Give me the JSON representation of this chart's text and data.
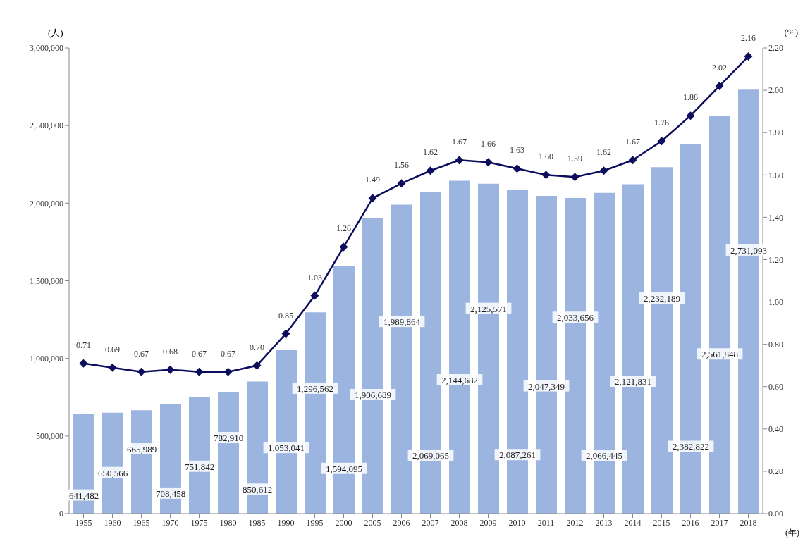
{
  "chart_data": {
    "type": "bar",
    "ylabel": "(人)",
    "y2label": "(%)",
    "xlabel": "(年)",
    "categories": [
      "1955",
      "1960",
      "1965",
      "1970",
      "1975",
      "1980",
      "1985",
      "1990",
      "1995",
      "2000",
      "2005",
      "2006",
      "2007",
      "2008",
      "2009",
      "2010",
      "2011",
      "2012",
      "2013",
      "2014",
      "2015",
      "2016",
      "2017",
      "2018"
    ],
    "series": [
      {
        "color": "#9bb4e0",
        "values": [
          641482,
          650566,
          665989,
          708458,
          751842,
          782910,
          850612,
          1053041,
          1296562,
          1594095,
          1906689,
          1989864,
          2069065,
          2144682,
          2125571,
          2087261,
          2047349,
          2033656,
          2066445,
          2121831,
          2232189,
          2382822,
          2561848,
          2731093
        ],
        "value_labels": [
          "641,482",
          "650,566",
          "665,989",
          "708,458",
          "751,842",
          "782,910",
          "850,612",
          "1,053,041",
          "1,296,562",
          "1,594,095",
          "1,906,689",
          "1,989,864",
          "2,069,065",
          "2,144,682",
          "2,125,571",
          "2,087,261",
          "2,047,349",
          "2,033,656",
          "2,066,445",
          "2,121,831",
          "2,232,189",
          "2,382,822",
          "2,561,848",
          "2,731,093"
        ]
      },
      {
        "type": "line",
        "axis": "y2",
        "color": "#0d0d5e",
        "marker": "diamond",
        "values": [
          0.71,
          0.69,
          0.67,
          0.68,
          0.67,
          0.67,
          0.7,
          0.85,
          1.03,
          1.26,
          1.49,
          1.56,
          1.62,
          1.67,
          1.66,
          1.63,
          1.6,
          1.59,
          1.62,
          1.67,
          1.76,
          1.88,
          2.02,
          2.16
        ],
        "value_labels": [
          "0.71",
          "0.69",
          "0.67",
          "0.68",
          "0.67",
          "0.67",
          "0.70",
          "0.85",
          "1.03",
          "1.26",
          "1.49",
          "1.56",
          "1.62",
          "1.67",
          "1.66",
          "1.63",
          "1.60",
          "1.59",
          "1.62",
          "1.67",
          "1.76",
          "1.88",
          "2.02",
          "2.16"
        ]
      }
    ],
    "ylim": [
      0,
      3000000
    ],
    "yticks": [
      {
        "value": 0,
        "label": "0"
      },
      {
        "value": 500000,
        "label": "500,000"
      },
      {
        "value": 1000000,
        "label": "1,000,000"
      },
      {
        "value": 1500000,
        "label": "1,500,000"
      },
      {
        "value": 2000000,
        "label": "2,000,000"
      },
      {
        "value": 2500000,
        "label": "2,500,000"
      },
      {
        "value": 3000000,
        "label": "3,000,000"
      }
    ],
    "y2lim": [
      0,
      2.2
    ],
    "y2ticks": [
      {
        "value": 0,
        "label": "0.00"
      },
      {
        "value": 0.2,
        "label": "0.20"
      },
      {
        "value": 0.4,
        "label": "0.40"
      },
      {
        "value": 0.6,
        "label": "0.60"
      },
      {
        "value": 0.8,
        "label": "0.80"
      },
      {
        "value": 1.0,
        "label": "1.00"
      },
      {
        "value": 1.2,
        "label": "1.20"
      },
      {
        "value": 1.4,
        "label": "1.40"
      },
      {
        "value": 1.6,
        "label": "1.60"
      },
      {
        "value": 1.8,
        "label": "1.80"
      },
      {
        "value": 2.0,
        "label": "2.00"
      },
      {
        "value": 2.2,
        "label": "2.20"
      }
    ],
    "grid": false,
    "legend": false
  }
}
